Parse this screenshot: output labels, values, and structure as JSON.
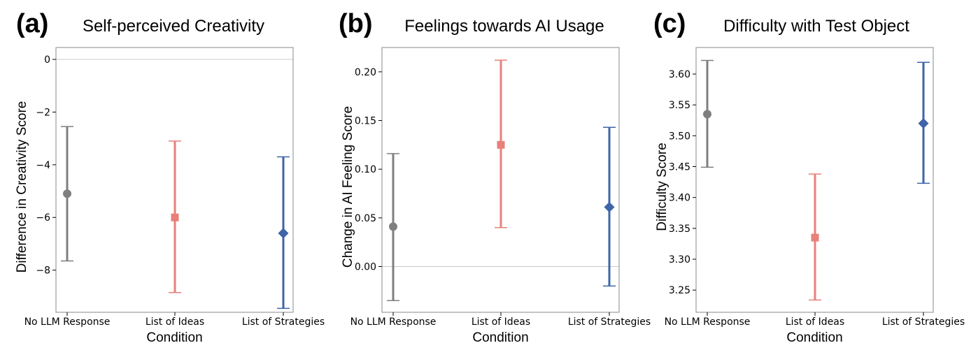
{
  "chart_data": [
    {
      "type": "scatter",
      "panel_label": "(a)",
      "title": "Self-perceived Creativity",
      "xlabel": "Condition",
      "ylabel": "Difference in Creativity Score",
      "categories": [
        "No LLM Response",
        "List of Ideas",
        "List of Strategies"
      ],
      "ylim": [
        -9.6,
        0.45
      ],
      "yticks": [
        0,
        -2,
        -4,
        -6,
        -8
      ],
      "ytick_labels": [
        "0",
        "−2",
        "−4",
        "−6",
        "−8"
      ],
      "zero_line": true,
      "points": [
        {
          "name": "No LLM Response",
          "value": -5.1,
          "ci_low": -7.65,
          "ci_high": -2.55,
          "color": "#7f7f7f",
          "marker": "circle"
        },
        {
          "name": "List of Ideas",
          "value": -6.0,
          "ci_low": -8.85,
          "ci_high": -3.1,
          "color": "#e8807a",
          "marker": "square"
        },
        {
          "name": "List of Strategies",
          "value": -6.6,
          "ci_low": -9.45,
          "ci_high": -3.7,
          "color": "#3f64a8",
          "marker": "diamond"
        }
      ]
    },
    {
      "type": "scatter",
      "panel_label": "(b)",
      "title": "Feelings towards AI Usage",
      "xlabel": "Condition",
      "ylabel": "Change in AI Feeling Score",
      "categories": [
        "No LLM Response",
        "List of Ideas",
        "List of Strategies"
      ],
      "ylim": [
        -0.047,
        0.225
      ],
      "yticks": [
        0.0,
        0.05,
        0.1,
        0.15,
        0.2
      ],
      "ytick_labels": [
        "0.00",
        "0.05",
        "0.10",
        "0.15",
        "0.20"
      ],
      "zero_line": true,
      "points": [
        {
          "name": "No LLM Response",
          "value": 0.041,
          "ci_low": -0.035,
          "ci_high": 0.116,
          "color": "#7f7f7f",
          "marker": "circle"
        },
        {
          "name": "List of Ideas",
          "value": 0.125,
          "ci_low": 0.04,
          "ci_high": 0.212,
          "color": "#e8807a",
          "marker": "square"
        },
        {
          "name": "List of Strategies",
          "value": 0.061,
          "ci_low": -0.02,
          "ci_high": 0.143,
          "color": "#3f64a8",
          "marker": "diamond"
        }
      ]
    },
    {
      "type": "scatter",
      "panel_label": "(c)",
      "title": "Difficulty with Test Object",
      "xlabel": "Condition",
      "ylabel": "Difficulty Score",
      "categories": [
        "No LLM Response",
        "List of Ideas",
        "List of Strategies"
      ],
      "ylim": [
        3.214,
        3.643
      ],
      "yticks": [
        3.25,
        3.3,
        3.35,
        3.4,
        3.45,
        3.5,
        3.55,
        3.6
      ],
      "ytick_labels": [
        "3.25",
        "3.30",
        "3.35",
        "3.40",
        "3.45",
        "3.50",
        "3.55",
        "3.60"
      ],
      "zero_line": false,
      "points": [
        {
          "name": "No LLM Response",
          "value": 3.535,
          "ci_low": 3.449,
          "ci_high": 3.622,
          "color": "#7f7f7f",
          "marker": "circle"
        },
        {
          "name": "List of Ideas",
          "value": 3.335,
          "ci_low": 3.234,
          "ci_high": 3.438,
          "color": "#e8807a",
          "marker": "square"
        },
        {
          "name": "List of Strategies",
          "value": 3.52,
          "ci_low": 3.423,
          "ci_high": 3.619,
          "color": "#3f64a8",
          "marker": "diamond"
        }
      ]
    }
  ]
}
